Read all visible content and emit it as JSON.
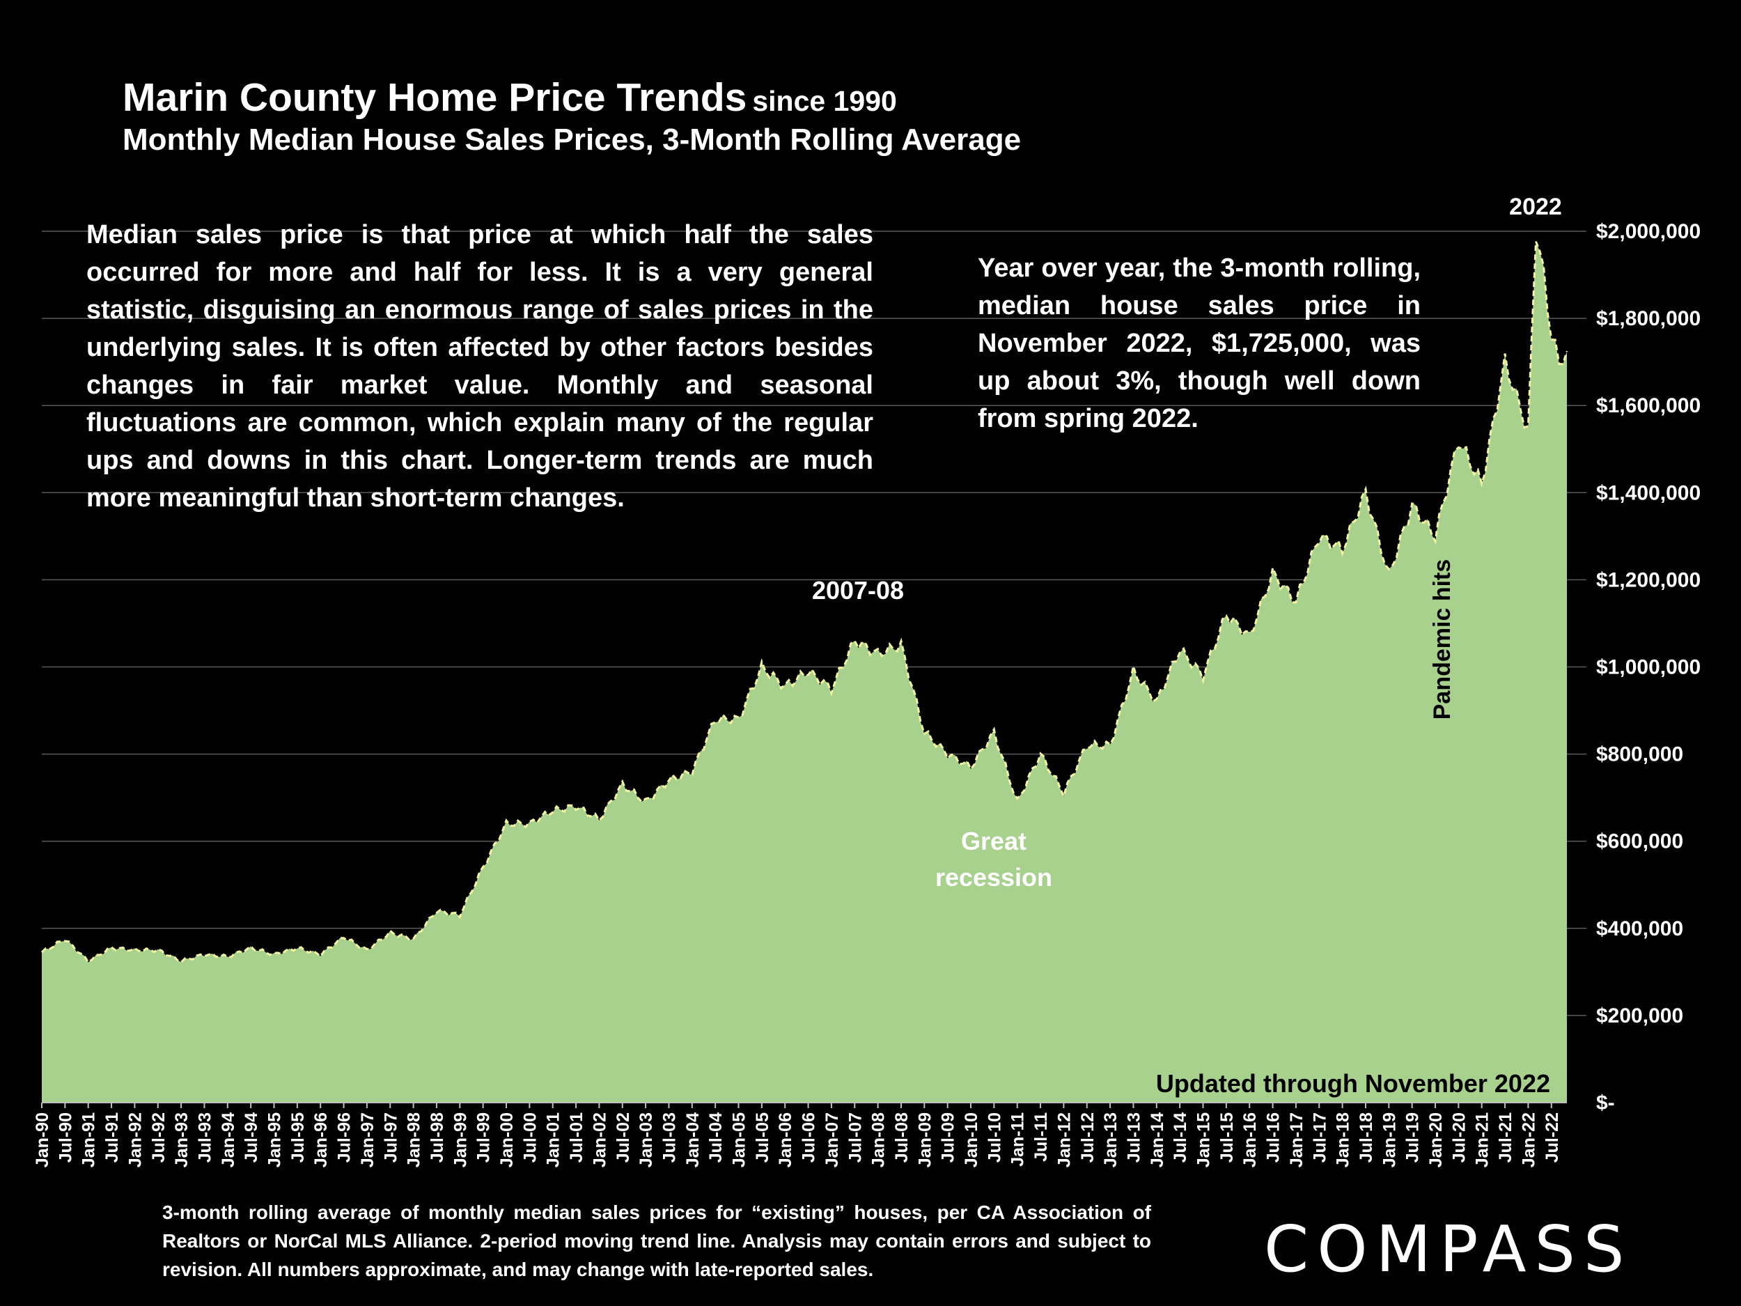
{
  "title": {
    "main": "Marin County Home Price Trends",
    "since": "since 1990",
    "subtitle": "Monthly Median House Sales Prices, 3-Month Rolling Average"
  },
  "notes": {
    "left": "Median sales price is that price at which half the sales occurred for more and half for less. It is a very general statistic, disguising an enormous range of sales prices in the underlying sales. It is often affected by other factors besides changes in fair market value. Monthly and seasonal fluctuations are common, which explain many of the regular ups and downs in this chart. Longer-term trends are much more meaningful than short-term changes.",
    "right": "Year over year, the 3-month rolling, median house sales price in November 2022, $1,725,000, was up about 3%, though well down from spring 2022."
  },
  "footnote": "3-month rolling average of monthly median sales prices for “existing” houses, per CA Association of Realtors or NorCal MLS Alliance. 2-period moving trend line. Analysis may contain errors and subject to revision. All numbers approximate, and may change with late-reported sales.",
  "logo": "COMPASS",
  "colors": {
    "area": "#a9d18e",
    "trend": "#f2f2a0",
    "grid": "#5a5a5a",
    "background": "#000000"
  },
  "chart_data": {
    "type": "area",
    "x_tick_labels": [
      "Jan-90",
      "Jul-90",
      "Jan-91",
      "Jul-91",
      "Jan-92",
      "Jul-92",
      "Jan-93",
      "Jul-93",
      "Jan-94",
      "Jul-94",
      "Jan-95",
      "Jul-95",
      "Jan-96",
      "Jul-96",
      "Jan-97",
      "Jul-97",
      "Jan-98",
      "Jul-98",
      "Jan-99",
      "Jul-99",
      "Jan-00",
      "Jul-00",
      "Jan-01",
      "Jul-01",
      "Jan-02",
      "Jul-02",
      "Jan-03",
      "Jul-03",
      "Jan-04",
      "Jul-04",
      "Jan-05",
      "Jul-05",
      "Jan-06",
      "Jul-06",
      "Jan-07",
      "Jul-07",
      "Jan-08",
      "Jul-08",
      "Jan-09",
      "Jul-09",
      "Jan-10",
      "Jul-10",
      "Jan-11",
      "Jul-11",
      "Jan-12",
      "Jul-12",
      "Jan-13",
      "Jul-13",
      "Jan-14",
      "Jul-14",
      "Jan-15",
      "Jul-15",
      "Jan-16",
      "Jul-16",
      "Jan-17",
      "Jul-17",
      "Jan-18",
      "Jul-18",
      "Jan-19",
      "Jul-19",
      "Jan-20",
      "Jul-20",
      "Jan-21",
      "Jul-21",
      "Jan-22",
      "Jul-22"
    ],
    "y_tick_labels": [
      "$-",
      "$200,000",
      "$400,000",
      "$600,000",
      "$800,000",
      "$1,000,000",
      "$1,200,000",
      "$1,400,000",
      "$1,600,000",
      "$1,800,000",
      "$2,000,000"
    ],
    "ylim": [
      0,
      2000000
    ],
    "series": [
      {
        "x": [
          "Jan-90",
          "Jul-90",
          "Jan-91",
          "Jul-91",
          "Jan-92",
          "Jul-92",
          "Jan-93",
          "Jul-93",
          "Jan-94",
          "Jul-94",
          "Jan-95",
          "Jul-95",
          "Jan-96",
          "Jul-96",
          "Jan-97",
          "Jul-97",
          "Jan-98",
          "Jul-98",
          "Jan-99",
          "Jul-99",
          "Jan-00",
          "Jul-00",
          "Jan-01",
          "Jul-01",
          "Jan-02",
          "Jul-02",
          "Jan-03",
          "Jul-03",
          "Jan-04",
          "Jul-04",
          "Jan-05",
          "Jul-05",
          "Jan-06",
          "Jul-06",
          "Jan-07",
          "Jul-07",
          "Jan-08",
          "Jul-08",
          "Jan-09",
          "Jul-09",
          "Jan-10",
          "Jul-10",
          "Jan-11",
          "Jul-11",
          "Jan-12",
          "Jul-12",
          "Jan-13",
          "Jul-13",
          "Jan-14",
          "Jul-14",
          "Jan-15",
          "Jul-15",
          "Jan-16",
          "Jul-16",
          "Jan-17",
          "Jul-17",
          "Jan-18",
          "Jul-18",
          "Jan-19",
          "Jul-19",
          "Jan-20",
          "Jul-20",
          "Jan-21",
          "Jul-21",
          "Jan-22",
          "Mar-22",
          "May-22",
          "Jul-22",
          "Sep-22",
          "Nov-22"
        ],
        "y": [
          345000,
          375000,
          325000,
          355000,
          350000,
          350000,
          325000,
          340000,
          335000,
          355000,
          340000,
          355000,
          340000,
          380000,
          350000,
          390000,
          375000,
          440000,
          430000,
          540000,
          640000,
          640000,
          670000,
          680000,
          650000,
          730000,
          690000,
          740000,
          760000,
          880000,
          880000,
          1000000,
          955000,
          990000,
          950000,
          1060000,
          1030000,
          1050000,
          850000,
          800000,
          770000,
          850000,
          690000,
          800000,
          710000,
          820000,
          820000,
          990000,
          920000,
          1040000,
          980000,
          1120000,
          1070000,
          1215000,
          1150000,
          1300000,
          1270000,
          1400000,
          1210000,
          1370000,
          1300000,
          1520000,
          1420000,
          1700000,
          1540000,
          2000000,
          1900000,
          1760000,
          1700000,
          1725000
        ]
      }
    ],
    "annotations": [
      "2007-08",
      "Great recession",
      "Pandemic hits",
      "2022",
      "Updated through November 2022"
    ]
  },
  "annotation_text": {
    "peak_0708": "2007-08",
    "recession_line1": "Great",
    "recession_line2": "recession",
    "pandemic": "Pandemic hits",
    "peak_2022": "2022",
    "updated": "Updated through November 2022"
  }
}
